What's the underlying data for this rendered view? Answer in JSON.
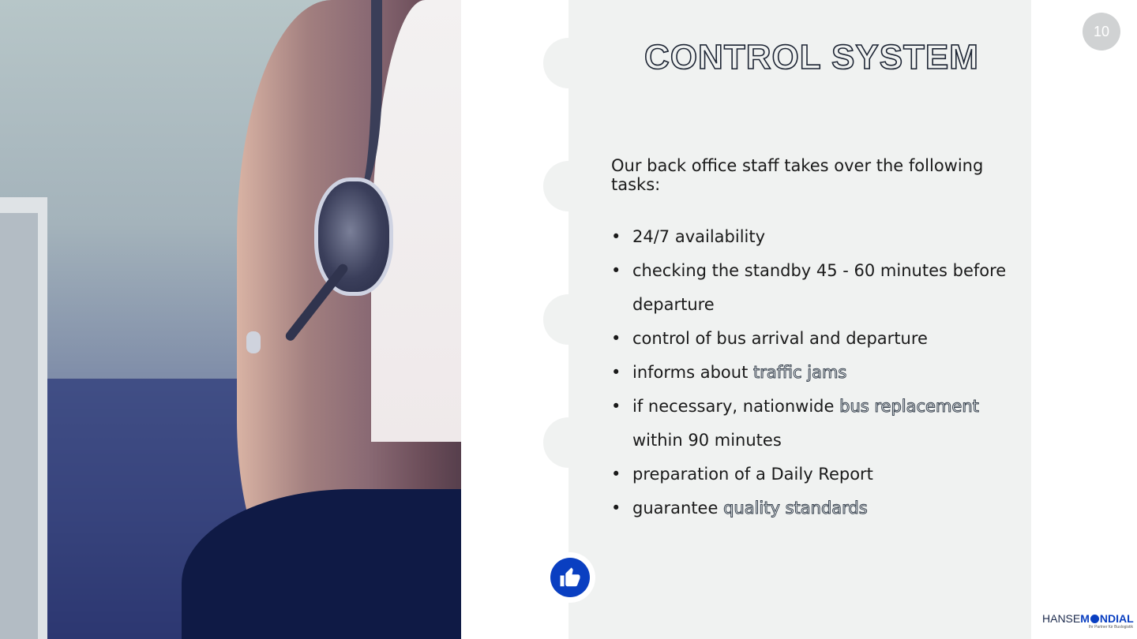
{
  "slide": {
    "page_number": "10",
    "title": "CONTROL SYSTEM",
    "intro": "Our back office staff takes over the following tasks:",
    "bullet_symbol": "•",
    "tasks": [
      {
        "parts": [
          {
            "text": "24/7 availability",
            "outlined": false
          }
        ]
      },
      {
        "parts": [
          {
            "text": "checking the standby 45 - 60 minutes before departure",
            "outlined": false
          }
        ]
      },
      {
        "parts": [
          {
            "text": "control of bus arrival and departure",
            "outlined": false
          }
        ]
      },
      {
        "parts": [
          {
            "text": "informs about ",
            "outlined": false
          },
          {
            "text": "traffic jams",
            "outlined": true
          }
        ]
      },
      {
        "parts": [
          {
            "text": "if necessary, nationwide ",
            "outlined": false
          },
          {
            "text": "bus replacement",
            "outlined": true
          },
          {
            "text": " within 90 minutes",
            "outlined": false
          }
        ]
      },
      {
        "parts": [
          {
            "text": "preparation of a Daily Report",
            "outlined": false
          }
        ]
      },
      {
        "parts": [
          {
            "text": "guarantee ",
            "outlined": false
          },
          {
            "text": "quality standards",
            "outlined": true
          }
        ]
      }
    ],
    "badge_icon": "thumbs-up-icon"
  },
  "logo": {
    "hanse": "HANSE",
    "mondial": "NDIAL",
    "m_letter": "M",
    "tagline": "Ihr Partner für Buslogistik"
  },
  "colors": {
    "panel": "#f0f2f1",
    "accent_blue": "#0a3fc1",
    "page_badge": "#d0d2d3",
    "text": "#1a1a1a"
  }
}
